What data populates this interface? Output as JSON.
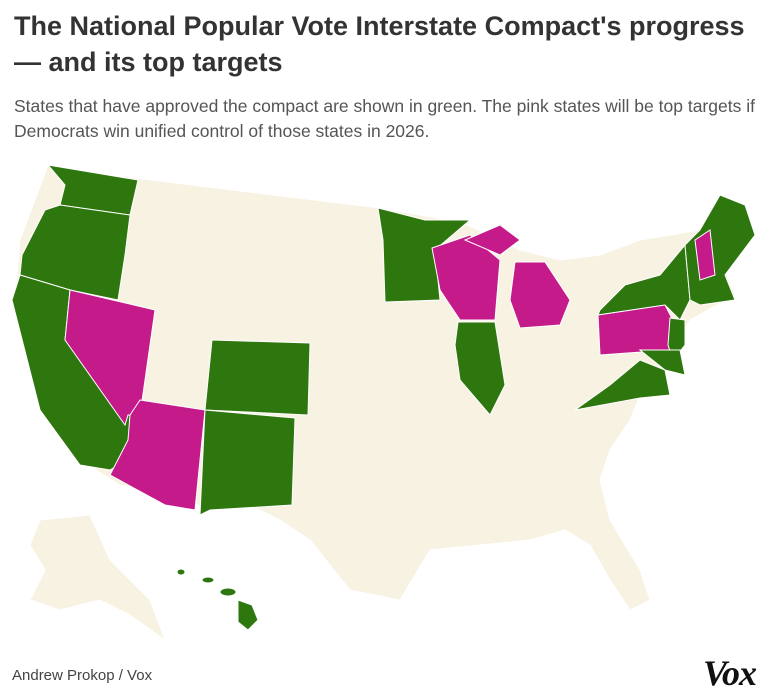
{
  "header": {
    "title": "The National Popular Vote Interstate Compact's progress — and its top targets",
    "subtitle": "States that have approved the compact are shown in green. The pink states will be top targets if Democrats win unified control of those states in 2026."
  },
  "footer": {
    "credit": "Andrew Prokop / Vox",
    "logo": "Vox"
  }
}
